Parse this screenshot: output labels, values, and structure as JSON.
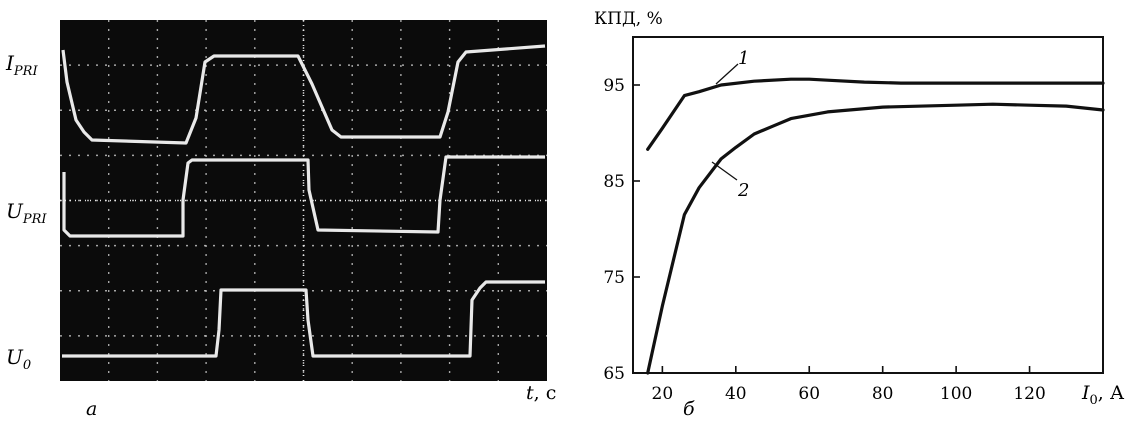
{
  "osc": {
    "labels": {
      "i_pri": {
        "main": "I",
        "sub": "PRI"
      },
      "u_pri": {
        "main": "U",
        "sub": "PRI"
      },
      "u0": {
        "main": "U",
        "sub": "0"
      }
    },
    "time_axis": {
      "var": "t",
      "unit": ", с"
    },
    "panel_letter": "а"
  },
  "chart_data": {
    "type": "line",
    "title": "",
    "ylabel": "КПД, %",
    "xlabel": {
      "var": "I",
      "sub": "0",
      "unit": ", А"
    },
    "xlim": [
      12,
      140
    ],
    "ylim": [
      65,
      100
    ],
    "xticks": [
      20,
      40,
      60,
      80,
      100,
      120
    ],
    "yticks": [
      65,
      75,
      85,
      95
    ],
    "grid": false,
    "panel_letter": "б",
    "series": [
      {
        "name": "1",
        "x": [
          16,
          20,
          26,
          30,
          36,
          45,
          55,
          60,
          65,
          75,
          85,
          100,
          120,
          140
        ],
        "y": [
          88.3,
          90.5,
          93.9,
          94.3,
          95.0,
          95.4,
          95.6,
          95.6,
          95.5,
          95.3,
          95.2,
          95.2,
          95.2,
          95.2
        ]
      },
      {
        "name": "2",
        "x": [
          16,
          20,
          26,
          30,
          36,
          40,
          45,
          50,
          55,
          65,
          80,
          100,
          110,
          120,
          130,
          140
        ],
        "y": [
          65.0,
          72.0,
          81.5,
          84.3,
          87.3,
          88.5,
          89.9,
          90.7,
          91.5,
          92.2,
          92.7,
          92.9,
          93.0,
          92.9,
          92.8,
          92.4
        ]
      }
    ]
  }
}
